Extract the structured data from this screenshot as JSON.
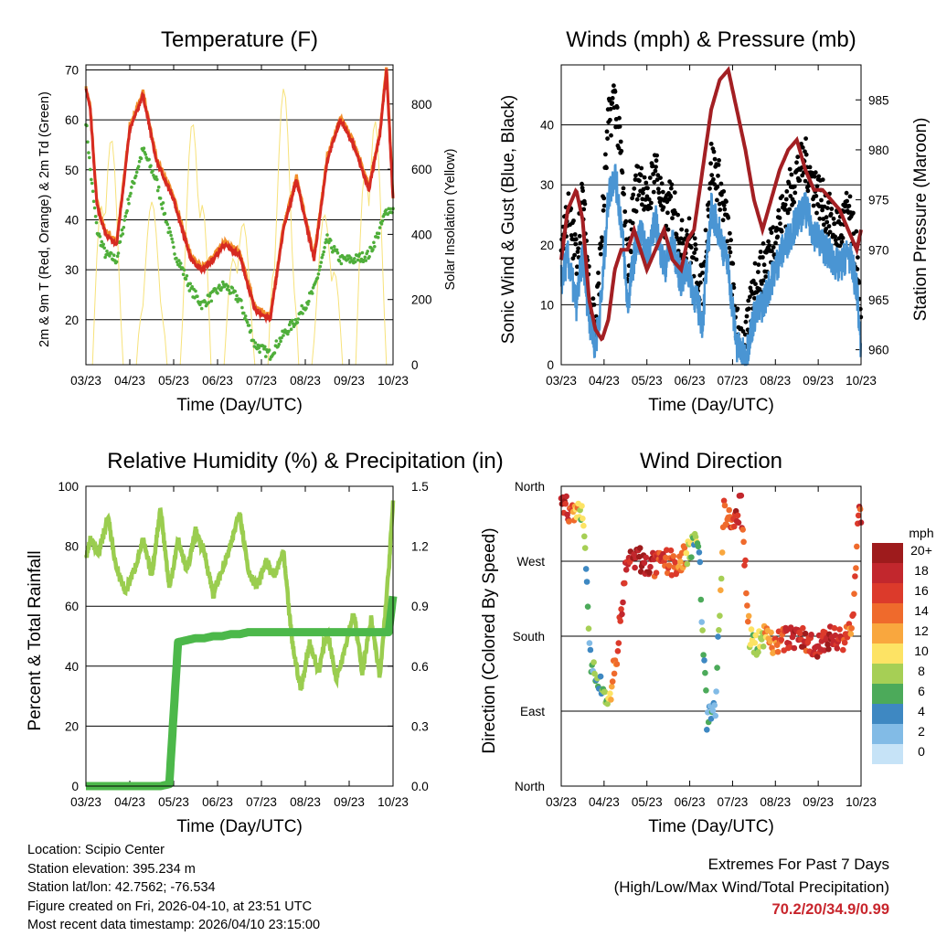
{
  "footer": {
    "location": "Location: Scipio Center",
    "elevation": "Station elevation: 395.234 m",
    "latlon": "Station lat/lon: 42.7562; -76.534",
    "created": "Figure created on Fri, 2026-04-10, at 23:51 UTC",
    "recent": "Most recent data timestamp: 2026/04/10 23:15:00",
    "extremes_title": "Extremes For Past 7 Days",
    "extremes_sub": "(High/Low/Max Wind/Total Precipitation)",
    "extremes_values": "70.2/20/34.9/0.99"
  },
  "colors": {
    "temp2m": "#d62a22",
    "temp9m": "#f28e2b",
    "dewpoint": "#4fae3a",
    "solar": "#f7e27a",
    "gust": "#000000",
    "wind": "#4a95d3",
    "pressure": "#a31f23",
    "rh": "#9acd4f",
    "precip": "#4cb84a"
  },
  "chart_data": [
    {
      "type": "line",
      "title": "Temperature (F)",
      "xlabel": "Time (Day/UTC)",
      "ylabel": "2m & 9m T (Red, Orange) & 2m Td (Green)",
      "y2label": "Solar Insolation (Yellow)",
      "x_ticks": [
        "03/23",
        "04/23",
        "05/23",
        "06/23",
        "07/23",
        "08/23",
        "09/23",
        "10/23"
      ],
      "xlim": [
        0,
        7
      ],
      "ylim": [
        11,
        71
      ],
      "y_ticks": [
        20,
        30,
        40,
        50,
        60,
        70
      ],
      "y2lim": [
        0,
        920
      ],
      "y2_ticks": [
        0,
        200,
        400,
        600,
        800
      ],
      "x": [
        0,
        0.1,
        0.25,
        0.45,
        0.7,
        1.0,
        1.3,
        1.6,
        2.0,
        2.4,
        2.65,
        2.9,
        3.15,
        3.5,
        3.85,
        4.2,
        4.5,
        4.8,
        5.2,
        5.5,
        5.8,
        6.1,
        6.45,
        6.7,
        6.85,
        7.0
      ],
      "series": [
        {
          "name": "2m T",
          "values": [
            66,
            62,
            43,
            37,
            35,
            58,
            65,
            52,
            44,
            32,
            30,
            32,
            35,
            33,
            22,
            20,
            38,
            48,
            32,
            52,
            60,
            55,
            46,
            57,
            70,
            44
          ]
        },
        {
          "name": "2m Td",
          "values": [
            60,
            50,
            38,
            33,
            32,
            45,
            54,
            48,
            34,
            26,
            23,
            25,
            27,
            24,
            15,
            13,
            17,
            20,
            26,
            36,
            32,
            32,
            33,
            38,
            42,
            42
          ]
        },
        {
          "name": "Solar",
          "values": [
            0,
            450,
            0,
            780,
            0,
            600,
            0,
            700,
            0,
            820,
            0,
            900,
            0,
            850,
            0,
            700,
            0,
            650,
            0,
            880,
            0,
            750,
            0,
            600,
            0,
            0
          ]
        }
      ]
    },
    {
      "type": "scatter",
      "title": "Winds (mph) & Pressure (mb)",
      "xlabel": "Time (Day/UTC)",
      "ylabel": "Sonic Wind & Gust (Blue, Black)",
      "y2label": "Station Pressure (Maroon)",
      "x_ticks": [
        "03/23",
        "04/23",
        "05/23",
        "06/23",
        "07/23",
        "08/23",
        "09/23",
        "10/23"
      ],
      "xlim": [
        0,
        7
      ],
      "ylim": [
        0,
        50
      ],
      "y_ticks": [
        0,
        10,
        20,
        30,
        40
      ],
      "y2lim": [
        958.5,
        988.5
      ],
      "y2_ticks": [
        960,
        965,
        970,
        975,
        980,
        985
      ],
      "x": [
        0,
        0.15,
        0.35,
        0.5,
        0.65,
        0.8,
        0.95,
        1.1,
        1.25,
        1.4,
        1.55,
        1.7,
        1.85,
        2.0,
        2.2,
        2.4,
        2.6,
        2.8,
        2.95,
        3.1,
        3.3,
        3.5,
        3.7,
        3.9,
        4.1,
        4.3,
        4.5,
        4.7,
        4.9,
        5.1,
        5.3,
        5.5,
        5.7,
        5.9,
        6.1,
        6.3,
        6.5,
        6.7,
        6.9,
        7.0
      ],
      "series": [
        {
          "name": "Gust",
          "values": [
            20,
            26,
            18,
            28,
            14,
            6,
            22,
            40,
            45,
            34,
            16,
            28,
            32,
            26,
            34,
            24,
            28,
            20,
            22,
            18,
            12,
            34,
            30,
            22,
            6,
            3,
            14,
            16,
            20,
            24,
            28,
            32,
            34,
            30,
            27,
            24,
            22,
            26,
            18,
            4
          ]
        },
        {
          "name": "Wind",
          "values": [
            14,
            18,
            10,
            18,
            8,
            3,
            12,
            28,
            32,
            24,
            10,
            18,
            22,
            18,
            24,
            16,
            20,
            14,
            16,
            12,
            7,
            26,
            22,
            16,
            3,
            1,
            8,
            10,
            14,
            18,
            21,
            24,
            26,
            22,
            20,
            18,
            16,
            19,
            13,
            2
          ]
        },
        {
          "name": "Pressure",
          "values": [
            969,
            974,
            976,
            973,
            965,
            962,
            961,
            963,
            968,
            970,
            970,
            972,
            970,
            968,
            970,
            972,
            969,
            968,
            971,
            972,
            978,
            984,
            987,
            988,
            984,
            980,
            975,
            972,
            975,
            978,
            980,
            981,
            978,
            976,
            976,
            975,
            974,
            972,
            970,
            972
          ]
        }
      ]
    },
    {
      "type": "line",
      "title": "Relative Humidity (%) & Precipitation (in)",
      "xlabel": "Time (Day/UTC)",
      "ylabel": "Percent & Total Rainfall",
      "x_ticks": [
        "03/23",
        "04/23",
        "05/23",
        "06/23",
        "07/23",
        "08/23",
        "09/23",
        "10/23"
      ],
      "xlim": [
        0,
        7
      ],
      "ylim": [
        0,
        100
      ],
      "y_ticks": [
        0,
        20,
        40,
        60,
        80,
        100
      ],
      "y2lim": [
        0,
        1.5
      ],
      "y2_ticks": [
        "0.0",
        "0.3",
        "0.6",
        "0.9",
        "1.2",
        "1.5"
      ],
      "x": [
        0,
        0.1,
        0.3,
        0.5,
        0.7,
        0.9,
        1.1,
        1.3,
        1.5,
        1.7,
        1.9,
        2.1,
        2.3,
        2.5,
        2.7,
        2.9,
        3.1,
        3.3,
        3.5,
        3.7,
        3.9,
        4.1,
        4.3,
        4.5,
        4.7,
        4.9,
        5.1,
        5.3,
        5.5,
        5.7,
        5.9,
        6.1,
        6.3,
        6.5,
        6.7,
        6.9,
        7.0
      ],
      "series": [
        {
          "name": "RH",
          "values": [
            76,
            82,
            78,
            90,
            72,
            65,
            72,
            82,
            70,
            93,
            66,
            82,
            72,
            85,
            78,
            64,
            72,
            80,
            92,
            72,
            66,
            75,
            70,
            78,
            48,
            32,
            48,
            38,
            52,
            36,
            46,
            58,
            38,
            56,
            36,
            72,
            94
          ]
        },
        {
          "name": "Precip",
          "values": [
            0,
            0,
            0,
            0,
            0,
            0,
            0,
            0,
            0,
            0,
            0.01,
            0.72,
            0.73,
            0.74,
            0.74,
            0.75,
            0.75,
            0.76,
            0.76,
            0.77,
            0.77,
            0.77,
            0.77,
            0.77,
            0.77,
            0.77,
            0.77,
            0.77,
            0.77,
            0.77,
            0.77,
            0.77,
            0.77,
            0.77,
            0.77,
            0.77,
            0.95
          ]
        }
      ]
    },
    {
      "type": "scatter",
      "title": "Wind Direction",
      "xlabel": "Time (Day/UTC)",
      "ylabel": "Direction (Colored By Speed)",
      "x_ticks": [
        "03/23",
        "04/23",
        "05/23",
        "06/23",
        "07/23",
        "08/23",
        "09/23",
        "10/23"
      ],
      "xlim": [
        0,
        7
      ],
      "ylim": [
        0,
        360
      ],
      "y_ticks": [
        "North",
        "East",
        "South",
        "West",
        "North"
      ],
      "colorbar_title": "mph",
      "colorbar_labels": [
        "20+",
        "18",
        "16",
        "14",
        "12",
        "10",
        "8",
        "6",
        "4",
        "2",
        "0"
      ],
      "colorbar_colors": [
        "#9e1b1c",
        "#c2272d",
        "#dc3a2b",
        "#ef6a2c",
        "#f9a73e",
        "#fde364",
        "#a6cf55",
        "#4caa5a",
        "#3e88c2",
        "#82bbe6",
        "#c6e3f7"
      ],
      "x": [
        0.05,
        0.2,
        0.35,
        0.5,
        0.7,
        0.9,
        1.1,
        1.3,
        1.5,
        1.7,
        1.9,
        2.1,
        2.3,
        2.5,
        2.7,
        2.9,
        3.05,
        3.2,
        3.4,
        3.6,
        3.8,
        4.0,
        4.2,
        4.4,
        4.6,
        4.8,
        5.0,
        5.2,
        5.4,
        5.6,
        5.8,
        6.0,
        6.2,
        6.4,
        6.6,
        6.8,
        6.95
      ],
      "series": [
        {
          "name": "Direction",
          "values": [
            340,
            330,
            320,
            335,
            140,
            120,
            100,
            160,
            260,
            275,
            270,
            265,
            265,
            270,
            265,
            275,
            290,
            300,
            80,
            95,
            330,
            310,
            340,
            180,
            170,
            185,
            170,
            175,
            180,
            178,
            172,
            170,
            175,
            180,
            178,
            190,
            330
          ]
        },
        {
          "name": "Speed",
          "values": [
            18,
            16,
            12,
            8,
            4,
            6,
            10,
            14,
            18,
            19,
            20,
            18,
            16,
            15,
            14,
            12,
            8,
            6,
            4,
            3,
            14,
            16,
            18,
            10,
            8,
            12,
            14,
            16,
            18,
            18,
            17,
            18,
            19,
            18,
            16,
            14,
            16
          ]
        }
      ]
    }
  ]
}
